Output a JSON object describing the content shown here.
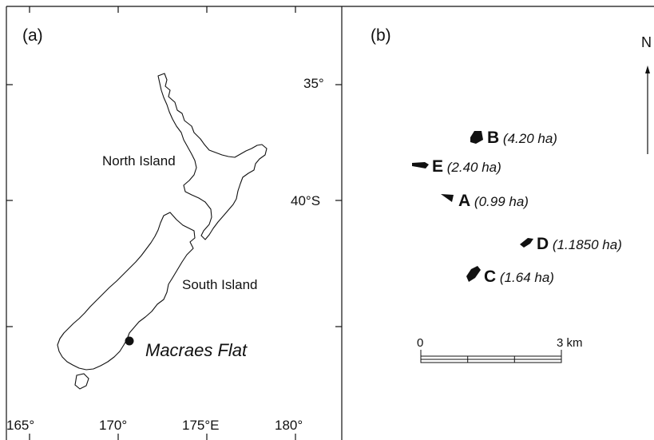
{
  "panels": {
    "a": {
      "label": "(a)"
    },
    "b": {
      "label": "(b)"
    }
  },
  "map_a": {
    "latitude_ticks": [
      "35°",
      "40°S"
    ],
    "longitude_ticks": [
      "165°",
      "170°",
      "175°E",
      "180°"
    ],
    "islands": {
      "north": "North Island",
      "south": "South Island"
    },
    "study_site": "Macraes Flat"
  },
  "map_b": {
    "north_arrow": "N",
    "sites": [
      {
        "code": "B",
        "area": "(4.20 ha)"
      },
      {
        "code": "E",
        "area": "(2.40 ha)"
      },
      {
        "code": "A",
        "area": "(0.99 ha)"
      },
      {
        "code": "D",
        "area": "(1.1850 ha)"
      },
      {
        "code": "C",
        "area": "(1.64 ha)"
      }
    ],
    "scale_bar": {
      "start": "0",
      "end": "3 km"
    }
  },
  "colors": {
    "line": "#111111",
    "fill": "#111111",
    "background": "#ffffff"
  }
}
